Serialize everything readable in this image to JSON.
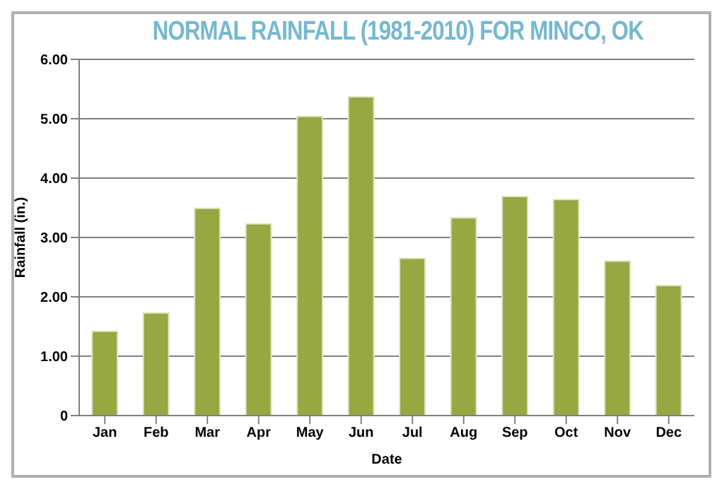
{
  "chart_data": {
    "type": "bar",
    "title": "NORMAL RAINFALL (1981-2010) FOR MINCO, OK",
    "xlabel": "Date",
    "ylabel": "Rainfall (in.)",
    "categories": [
      "Jan",
      "Feb",
      "Mar",
      "Apr",
      "May",
      "Jun",
      "Jul",
      "Aug",
      "Sep",
      "Oct",
      "Nov",
      "Dec"
    ],
    "values": [
      1.42,
      1.73,
      3.49,
      3.23,
      5.04,
      5.37,
      2.65,
      3.33,
      3.69,
      3.64,
      2.6,
      2.19
    ],
    "color": "#97a843",
    "ylim": [
      0,
      6
    ],
    "yticks": [
      {
        "value": 0,
        "label": "0"
      },
      {
        "value": 1,
        "label": "1.00"
      },
      {
        "value": 2,
        "label": "2.00"
      },
      {
        "value": 3,
        "label": "3.00"
      },
      {
        "value": 4,
        "label": "4.00"
      },
      {
        "value": 5,
        "label": "5.00"
      },
      {
        "value": 6,
        "label": "6.00"
      }
    ],
    "grid": "y"
  }
}
